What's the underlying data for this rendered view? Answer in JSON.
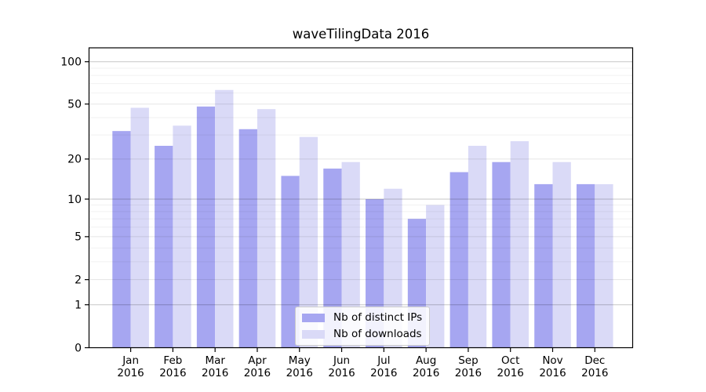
{
  "chart_data": {
    "type": "bar",
    "title": "waveTilingData 2016",
    "categories": [
      "Jan",
      "Feb",
      "Mar",
      "Apr",
      "May",
      "Jun",
      "Jul",
      "Aug",
      "Sep",
      "Oct",
      "Nov",
      "Dec"
    ],
    "year_label": "2016",
    "series": [
      {
        "name": "Nb of distinct IPs",
        "color": "#a6a6f1",
        "values": [
          32,
          25,
          48,
          33,
          15,
          17,
          10,
          7,
          16,
          19,
          13,
          13
        ]
      },
      {
        "name": "Nb of downloads",
        "color": "#dadaf7",
        "values": [
          47,
          35,
          63,
          46,
          29,
          19,
          12,
          9,
          25,
          27,
          19,
          13
        ]
      }
    ],
    "xlabel": "",
    "ylabel": "",
    "yscale": "log1p",
    "ylim": [
      0,
      123
    ],
    "yticks": [
      0,
      1,
      2,
      5,
      10,
      20,
      50,
      100
    ],
    "minor_yticks": [
      3,
      4,
      6,
      7,
      8,
      9,
      30,
      40,
      60,
      70,
      80,
      90
    ],
    "grid": true,
    "legend_position": "lower center",
    "colors": {
      "frame": "#000000",
      "major_gridline": "rgba(0,0,0,0.22)",
      "labeled_gridline": "rgba(0,0,0,0.10)",
      "minor_gridline": "rgba(0,0,0,0.055)",
      "background": "#ffffff"
    }
  }
}
